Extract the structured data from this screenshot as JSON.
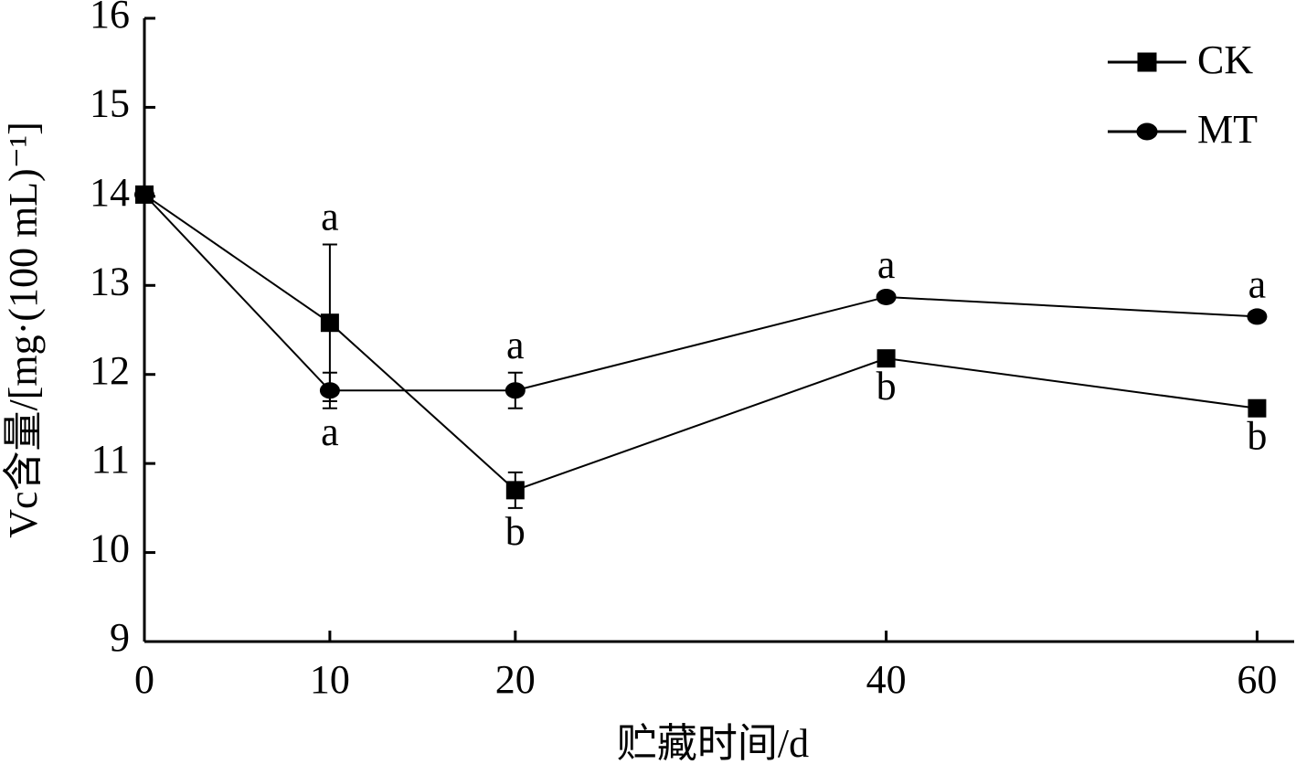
{
  "chart_data": {
    "type": "line",
    "x_label": "贮藏时间/d",
    "y_label": "Vc含量/[mg·(100 mL)⁻¹]",
    "x": [
      0,
      10,
      20,
      40,
      60
    ],
    "series": [
      {
        "name": "CK",
        "color": "#000000",
        "marker": "square",
        "values": [
          14.02,
          12.58,
          10.7,
          12.18,
          11.62
        ],
        "errors": [
          0.03,
          0.88,
          0.2,
          0.05,
          0.05
        ],
        "value_labels": [
          null,
          "a",
          "b",
          "b",
          "b"
        ]
      },
      {
        "name": "MT",
        "color": "#000000",
        "marker": "circle",
        "values": [
          14.02,
          11.82,
          11.82,
          12.87,
          12.65
        ],
        "errors": [
          0.03,
          0.2,
          0.2,
          0.05,
          0.05
        ],
        "value_labels": [
          null,
          "a",
          "a",
          "a",
          "a"
        ]
      }
    ],
    "xlim": [
      0,
      62
    ],
    "xticks": [
      0,
      10,
      20,
      40,
      60
    ],
    "ylim": [
      9,
      16
    ],
    "yticks": [
      9,
      10,
      11,
      12,
      13,
      14,
      15,
      16
    ],
    "legend": "upper right"
  }
}
